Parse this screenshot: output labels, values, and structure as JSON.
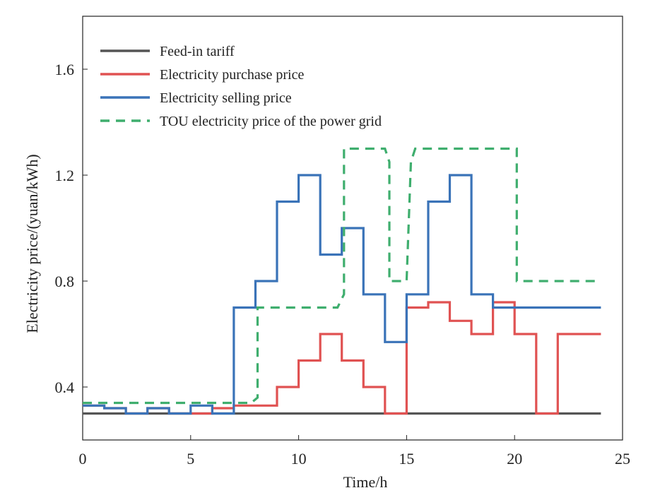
{
  "chart_data": {
    "type": "line",
    "title": "",
    "xlabel": "Time/h",
    "ylabel": "Electricity price/(yuan/kWh)",
    "xlim": [
      0,
      25
    ],
    "ylim": [
      0.2,
      1.8
    ],
    "x_ticks": [
      0,
      5,
      10,
      15,
      20,
      25
    ],
    "y_ticks": [
      0.4,
      0.8,
      1.2,
      1.6
    ],
    "x_tick_labels": [
      "0",
      "5",
      "10",
      "15",
      "20",
      "25"
    ],
    "y_tick_labels": [
      "0.4",
      "0.8",
      "1.2",
      "1.6"
    ],
    "legend_position": "top-left",
    "series": [
      {
        "name": "Feed-in tariff",
        "color": "#555555",
        "style": "solid",
        "steps": [
          0.3,
          0.3,
          0.3,
          0.3,
          0.3,
          0.3,
          0.3,
          0.3,
          0.3,
          0.3,
          0.3,
          0.3,
          0.3,
          0.3,
          0.3,
          0.3,
          0.3,
          0.3,
          0.3,
          0.3,
          0.3,
          0.3,
          0.3,
          0.3
        ]
      },
      {
        "name": "Electricity purchase price",
        "color": "#e05252",
        "style": "solid",
        "steps": [
          0.33,
          0.32,
          0.3,
          0.32,
          0.3,
          0.3,
          0.32,
          0.33,
          0.33,
          0.4,
          0.5,
          0.6,
          0.5,
          0.4,
          0.3,
          0.7,
          0.72,
          0.65,
          0.6,
          0.72,
          0.6,
          0.3,
          0.6,
          0.6
        ]
      },
      {
        "name": "Electricity selling price",
        "color": "#3a73b8",
        "style": "solid",
        "steps": [
          0.33,
          0.32,
          0.3,
          0.32,
          0.3,
          0.33,
          0.3,
          0.7,
          0.8,
          1.1,
          1.2,
          0.9,
          1.0,
          0.75,
          0.57,
          0.75,
          1.1,
          1.2,
          0.75,
          0.7,
          0.7,
          0.7,
          0.7,
          0.7
        ]
      },
      {
        "name": "TOU electricity price of the power grid",
        "color": "#3fae6e",
        "style": "dashed",
        "points": [
          [
            0,
            0.34
          ],
          [
            7.8,
            0.34
          ],
          [
            8.1,
            0.36
          ],
          [
            8.1,
            0.7
          ],
          [
            11.8,
            0.7
          ],
          [
            12.1,
            0.75
          ],
          [
            12.1,
            1.3
          ],
          [
            14,
            1.3
          ],
          [
            14.2,
            1.25
          ],
          [
            14.2,
            0.8
          ],
          [
            15,
            0.8
          ],
          [
            15.2,
            1.25
          ],
          [
            15.4,
            1.3
          ],
          [
            20.1,
            1.3
          ],
          [
            20.1,
            0.8
          ],
          [
            24,
            0.8
          ]
        ]
      }
    ]
  }
}
